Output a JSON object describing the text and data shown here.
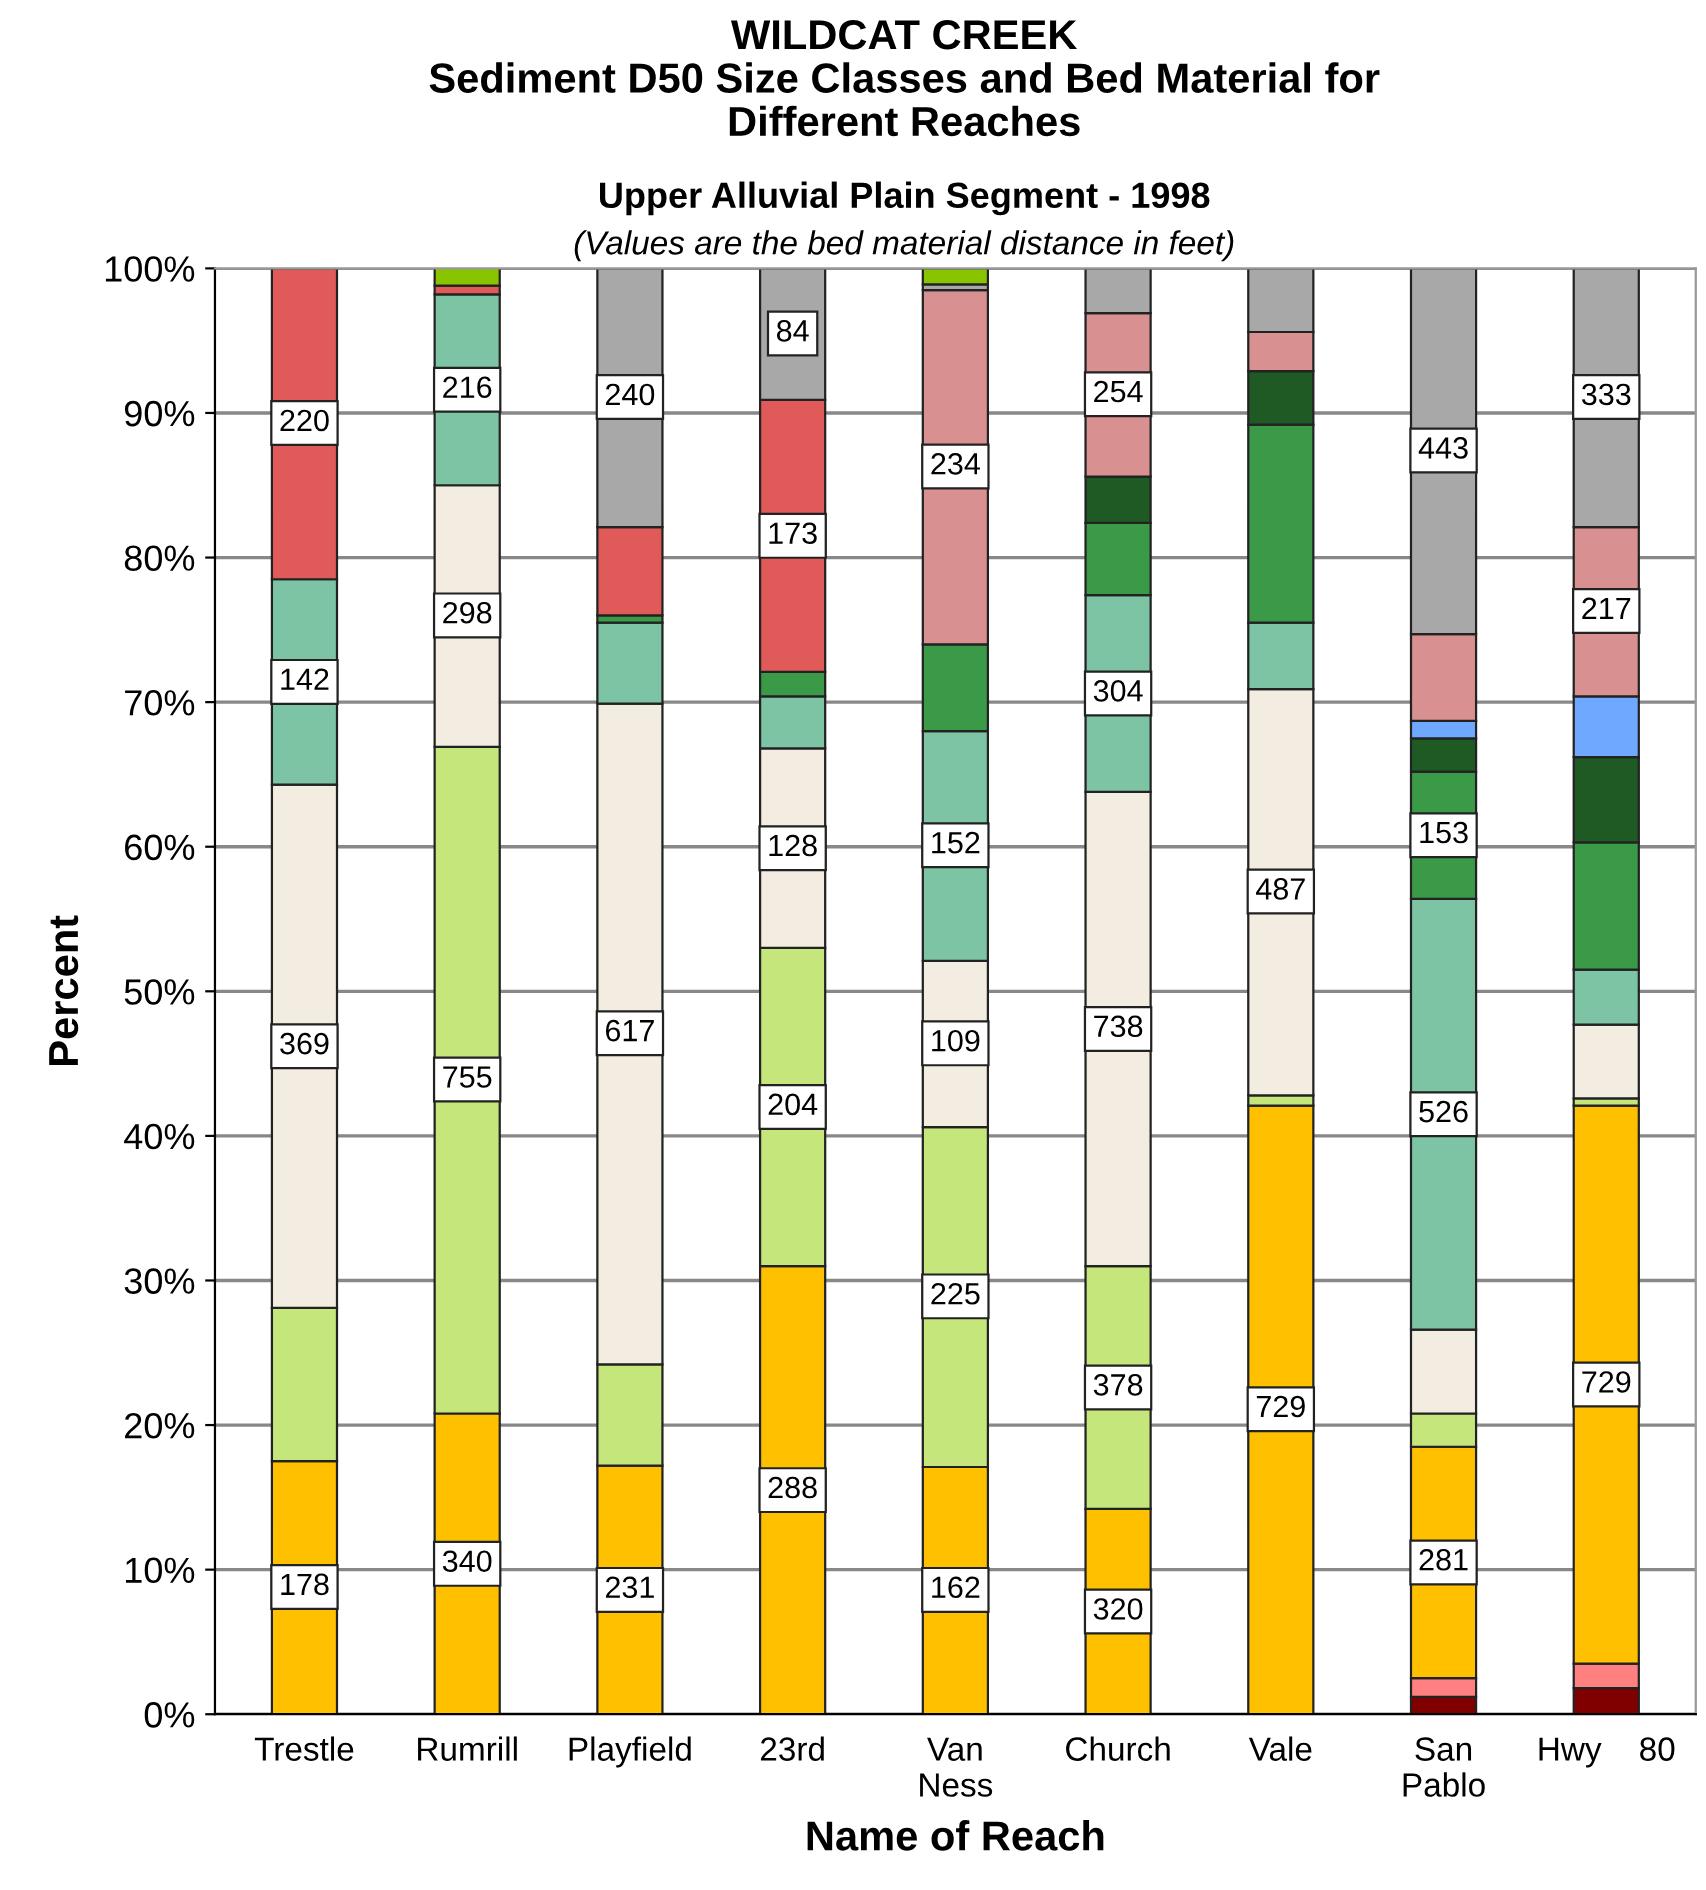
{
  "chart_data": {
    "type": "bar",
    "stacked": true,
    "title": "WILDCAT CREEK\nSediment D50 Size Classes and Bed Material for\nDifferent Reaches",
    "subtitle": "Upper Alluvial Plain Segment - 1998",
    "annotations": [
      "(Values are the bed material distance in feet)",
      {
        "text": "178",
        "x": "Trestle",
        "y": 8.8
      },
      {
        "text": "369",
        "x": "Trestle",
        "y": 46.2
      },
      {
        "text": "142",
        "x": "Trestle",
        "y": 71.4
      },
      {
        "text": "220",
        "x": "Trestle",
        "y": 89.3
      },
      {
        "text": "340",
        "x": "Rumrill",
        "y": 10.4
      },
      {
        "text": "755",
        "x": "Rumrill",
        "y": 43.9
      },
      {
        "text": "298",
        "x": "Rumrill",
        "y": 76.0
      },
      {
        "text": "216",
        "x": "Rumrill",
        "y": 91.6
      },
      {
        "text": "231",
        "x": "Playfield",
        "y": 8.6
      },
      {
        "text": "617",
        "x": "Playfield",
        "y": 47.1
      },
      {
        "text": "240",
        "x": "Playfield",
        "y": 91.1
      },
      {
        "text": "288",
        "x": "23rd",
        "y": 15.5
      },
      {
        "text": "204",
        "x": "23rd",
        "y": 42.0
      },
      {
        "text": "128",
        "x": "23rd",
        "y": 59.9
      },
      {
        "text": "173",
        "x": "23rd",
        "y": 81.5
      },
      {
        "text": "84",
        "x": "23rd",
        "y": 95.5
      },
      {
        "text": "162",
        "x": "Van\nNess",
        "y": 8.6
      },
      {
        "text": "225",
        "x": "Van\nNess",
        "y": 28.9
      },
      {
        "text": "109",
        "x": "Van\nNess",
        "y": 46.4
      },
      {
        "text": "152",
        "x": "Van\nNess",
        "y": 60.1
      },
      {
        "text": "234",
        "x": "Van\nNess",
        "y": 86.3
      },
      {
        "text": "320",
        "x": "Church",
        "y": 7.1
      },
      {
        "text": "378",
        "x": "Church",
        "y": 22.6
      },
      {
        "text": "738",
        "x": "Church",
        "y": 47.4
      },
      {
        "text": "304",
        "x": "Church",
        "y": 70.6
      },
      {
        "text": "254",
        "x": "Church",
        "y": 91.3
      },
      {
        "text": "729",
        "x": "Vale",
        "y": 21.1
      },
      {
        "text": "487",
        "x": "Vale",
        "y": 56.9
      },
      {
        "text": "281",
        "x": "San\nPablo",
        "y": 10.5
      },
      {
        "text": "526",
        "x": "San\nPablo",
        "y": 41.5
      },
      {
        "text": "153",
        "x": "San\nPablo",
        "y": 60.8
      },
      {
        "text": "443",
        "x": "San\nPablo",
        "y": 87.4
      },
      {
        "text": "729",
        "x": "Hwy    80",
        "y": 22.8
      },
      {
        "text": "217",
        "x": "Hwy    80",
        "y": 76.3
      },
      {
        "text": "333",
        "x": "Hwy    80",
        "y": 91.1
      }
    ],
    "xlabel": "Name of Reach",
    "ylabel": "Percent",
    "categories": [
      "Trestle",
      "Rumrill",
      "Playfield",
      "23rd",
      "Van\nNess",
      "Church",
      "Vale",
      "San\nPablo",
      "Hwy    80"
    ],
    "ylim": [
      0,
      100
    ],
    "yticks": [
      {
        "value": 0,
        "label": "0%"
      },
      {
        "value": 10,
        "label": "10%"
      },
      {
        "value": 20,
        "label": "20%"
      },
      {
        "value": 30,
        "label": "30%"
      },
      {
        "value": 40,
        "label": "40%"
      },
      {
        "value": 50,
        "label": "50%"
      },
      {
        "value": 60,
        "label": "60%"
      },
      {
        "value": 70,
        "label": "70%"
      },
      {
        "value": 80,
        "label": "80%"
      },
      {
        "value": 90,
        "label": "90%"
      },
      {
        "value": 100,
        "label": "100%"
      }
    ],
    "grid": "y",
    "series": [
      {
        "color": "#800000",
        "values": [
          null,
          null,
          null,
          null,
          null,
          null,
          null,
          1.2,
          1.8
        ]
      },
      {
        "color": "#ff8080",
        "values": [
          null,
          null,
          null,
          null,
          null,
          null,
          null,
          1.3,
          1.7
        ]
      },
      {
        "color": "#ffc000",
        "values": [
          17.5,
          20.8,
          17.2,
          31.0,
          17.1,
          14.2,
          42.1,
          16.0,
          38.6
        ]
      },
      {
        "color": "#c4e67a",
        "values": [
          10.6,
          46.1,
          7.0,
          22.0,
          23.5,
          16.8,
          0.7,
          2.3,
          0.5
        ]
      },
      {
        "color": "#f3ece0",
        "values": [
          36.2,
          18.1,
          45.7,
          13.8,
          11.5,
          32.8,
          28.1,
          5.8,
          5.1
        ]
      },
      {
        "color": "#7cc4a4",
        "values": [
          14.2,
          13.2,
          5.6,
          3.6,
          15.9,
          13.6,
          4.6,
          29.8,
          3.8
        ]
      },
      {
        "color": "#3a9a48",
        "values": [
          null,
          null,
          0.5,
          1.7,
          6.0,
          5.0,
          13.7,
          8.8,
          8.8
        ]
      },
      {
        "color": "#1f5a24",
        "values": [
          null,
          null,
          null,
          null,
          null,
          3.2,
          3.7,
          2.3,
          5.9
        ]
      },
      {
        "color": "#6fa8ff",
        "values": [
          null,
          null,
          null,
          null,
          null,
          null,
          null,
          1.2,
          4.2
        ]
      },
      {
        "color": "#d89090",
        "values": [
          null,
          null,
          null,
          null,
          24.5,
          11.3,
          2.7,
          6.0,
          11.7
        ]
      },
      {
        "color": "#e05a5a",
        "values": [
          21.5,
          0.6,
          6.1,
          18.8,
          null,
          null,
          null,
          null,
          null
        ]
      },
      {
        "color": "#a8a8a8",
        "values": [
          null,
          null,
          17.9,
          9.1,
          0.4,
          3.1,
          4.4,
          25.3,
          17.9
        ]
      },
      {
        "color": "#88c400",
        "values": [
          null,
          1.3,
          null,
          null,
          1.1,
          null,
          null,
          null,
          null
        ]
      }
    ]
  }
}
